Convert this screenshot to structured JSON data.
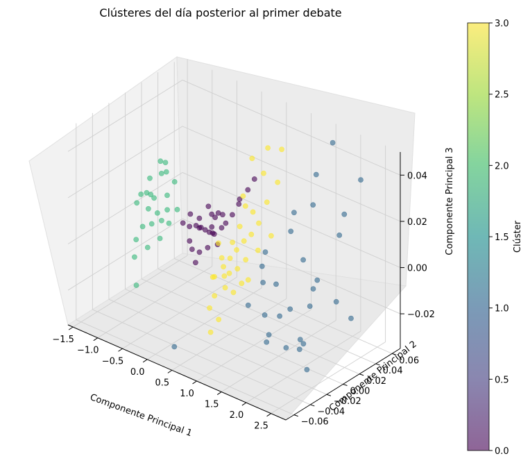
{
  "chart_data": {
    "type": "scatter",
    "projection": "3d",
    "title": "Clústeres del día posterior al primer debate",
    "xlabel": "Componente Principal 1",
    "ylabel": "Componente Principal 2",
    "zlabel": "Componente Principal 3",
    "xlim": [
      -1.6,
      2.8
    ],
    "ylim": [
      -0.07,
      0.07
    ],
    "zlim": [
      -0.035,
      0.05
    ],
    "x_ticks": [
      "−1.5",
      "−1.0",
      "−0.5",
      "0.0",
      "0.5",
      "1.0",
      "1.5",
      "2.0",
      "2.5"
    ],
    "y_ticks": [
      "−0.06",
      "−0.04",
      "−0.02",
      "0.00",
      "0.02",
      "0.04",
      "0.06"
    ],
    "z_ticks": [
      "−0.02",
      "0.00",
      "0.02",
      "0.04"
    ],
    "grid": true,
    "colormap": "viridis",
    "marker_alpha": 0.6,
    "colorbar": {
      "label": "Clúster",
      "range": [
        0.0,
        3.0
      ],
      "ticks": [
        "0.0",
        "0.5",
        "1.0",
        "1.5",
        "2.0",
        "2.5",
        "3.0"
      ],
      "placement": "right"
    },
    "series": [
      {
        "cluster": 0,
        "color": "#440154",
        "points": [
          [
            -0.15,
            0.01,
            0.002
          ],
          [
            -0.1,
            0.012,
            0.001
          ],
          [
            -0.2,
            0.008,
            0.003
          ],
          [
            -0.05,
            0.015,
            0.0
          ],
          [
            0.0,
            0.01,
            0.002
          ],
          [
            -0.25,
            0.005,
            0.004
          ],
          [
            -0.3,
            0.012,
            0.001
          ],
          [
            0.05,
            0.018,
            0.003
          ],
          [
            0.1,
            0.02,
            0.005
          ],
          [
            -0.4,
            0.006,
            0.002
          ],
          [
            -0.35,
            0.015,
            0.004
          ],
          [
            0.15,
            0.025,
            0.008
          ],
          [
            0.2,
            0.03,
            0.012
          ],
          [
            0.25,
            0.028,
            0.015
          ],
          [
            -0.1,
            0.0,
            -0.005
          ],
          [
            -0.2,
            -0.003,
            -0.004
          ],
          [
            0.0,
            0.004,
            -0.003
          ],
          [
            -0.3,
            0.0,
            -0.002
          ],
          [
            0.1,
            0.01,
            -0.002
          ],
          [
            -0.45,
            0.01,
            0.006
          ],
          [
            0.3,
            0.035,
            0.018
          ],
          [
            -0.05,
            0.02,
            0.008
          ],
          [
            0.05,
            0.006,
            0.006
          ],
          [
            -0.15,
            0.018,
            0.007
          ],
          [
            -0.25,
            0.02,
            0.009
          ],
          [
            0.12,
            0.015,
            0.01
          ],
          [
            -0.5,
            0.004,
            0.003
          ],
          [
            0.35,
            0.04,
            0.022
          ],
          [
            -0.08,
            -0.006,
            -0.008
          ],
          [
            -0.18,
            0.024,
            0.004
          ]
        ]
      },
      {
        "cluster": 1,
        "color": "#31688e",
        "points": [
          [
            1.6,
            0.06,
            0.045
          ],
          [
            2.2,
            0.058,
            0.035
          ],
          [
            1.9,
            0.05,
            0.01
          ],
          [
            1.5,
            0.03,
            0.0
          ],
          [
            1.7,
            0.035,
            -0.008
          ],
          [
            2.3,
            0.04,
            -0.02
          ],
          [
            1.8,
            0.02,
            -0.015
          ],
          [
            1.2,
            0.015,
            -0.01
          ],
          [
            1.4,
            0.02,
            -0.02
          ],
          [
            2.0,
            0.0,
            -0.025
          ],
          [
            2.1,
            -0.01,
            -0.02
          ],
          [
            2.4,
            -0.02,
            -0.028
          ],
          [
            1.3,
            -0.005,
            -0.018
          ],
          [
            1.55,
            -0.015,
            -0.022
          ],
          [
            1.75,
            -0.03,
            -0.02
          ],
          [
            2.5,
            -0.035,
            -0.015
          ],
          [
            1.1,
            0.005,
            -0.008
          ],
          [
            1.0,
            0.01,
            -0.003
          ],
          [
            0.9,
            0.02,
            0.0
          ],
          [
            1.25,
            0.03,
            0.01
          ],
          [
            1.45,
            0.045,
            0.02
          ],
          [
            1.35,
            0.055,
            0.03
          ],
          [
            2.25,
            0.025,
            -0.01
          ],
          [
            1.95,
            0.015,
            -0.005
          ],
          [
            1.05,
            -0.01,
            -0.015
          ],
          [
            1.65,
            0.0,
            -0.03
          ],
          [
            0.3,
            -0.055,
            -0.03
          ],
          [
            2.0,
            0.05,
            0.02
          ],
          [
            1.15,
            0.04,
            0.015
          ],
          [
            1.85,
            -0.02,
            -0.01
          ]
        ]
      },
      {
        "cluster": 2,
        "color": "#35b779",
        "points": [
          [
            -1.05,
            -0.005,
            0.006
          ],
          [
            -0.95,
            0.0,
            0.004
          ],
          [
            -1.1,
            0.005,
            0.008
          ],
          [
            -0.9,
            -0.01,
            0.002
          ],
          [
            -1.2,
            0.002,
            0.01
          ],
          [
            -0.85,
            0.006,
            0.005
          ],
          [
            -1.0,
            -0.015,
            0.001
          ],
          [
            -1.15,
            -0.008,
            0.012
          ],
          [
            -0.8,
            -0.004,
            0.003
          ],
          [
            -0.95,
            0.012,
            0.009
          ],
          [
            -1.25,
            0.01,
            0.007
          ],
          [
            -1.05,
            -0.02,
            -0.004
          ],
          [
            -1.3,
            -0.004,
            0.006
          ],
          [
            -0.75,
            0.002,
            0.001
          ],
          [
            -0.9,
            0.018,
            0.014
          ],
          [
            -1.1,
            0.02,
            0.016
          ],
          [
            -1.0,
            -0.025,
            -0.01
          ],
          [
            -0.95,
            0.005,
            0.02
          ],
          [
            -0.85,
            -0.018,
            -0.006
          ],
          [
            -1.2,
            0.025,
            0.018
          ],
          [
            -0.7,
            -0.012,
            -0.002
          ],
          [
            -1.35,
            0.015,
            0.012
          ],
          [
            -0.88,
            -0.03,
            -0.02
          ],
          [
            -1.02,
            0.008,
            0.024
          ],
          [
            -0.78,
            0.014,
            0.004
          ]
        ]
      },
      {
        "cluster": 3,
        "color": "#fde725",
        "points": [
          [
            0.65,
            -0.015,
            -0.005
          ],
          [
            0.55,
            -0.01,
            -0.003
          ],
          [
            0.75,
            -0.02,
            -0.008
          ],
          [
            0.6,
            -0.005,
            0.0
          ],
          [
            0.7,
            -0.012,
            -0.004
          ],
          [
            0.5,
            -0.018,
            -0.006
          ],
          [
            0.8,
            -0.008,
            -0.002
          ],
          [
            0.65,
            0.0,
            0.003
          ],
          [
            0.45,
            -0.006,
            -0.001
          ],
          [
            0.85,
            -0.016,
            -0.01
          ],
          [
            0.6,
            -0.024,
            -0.012
          ],
          [
            0.7,
            0.006,
            0.006
          ],
          [
            0.9,
            -0.004,
            0.002
          ],
          [
            0.5,
            0.004,
            0.004
          ],
          [
            0.75,
            0.012,
            0.008
          ],
          [
            0.95,
            -0.012,
            -0.006
          ],
          [
            0.4,
            -0.014,
            -0.008
          ],
          [
            0.55,
            0.01,
            0.01
          ],
          [
            0.8,
            0.018,
            0.012
          ],
          [
            0.65,
            0.02,
            0.015
          ],
          [
            1.0,
            0.005,
            0.005
          ],
          [
            0.6,
            -0.03,
            -0.016
          ],
          [
            0.85,
            0.025,
            0.02
          ],
          [
            0.7,
            0.03,
            0.03
          ],
          [
            0.5,
            0.028,
            0.035
          ],
          [
            0.9,
            0.04,
            0.04
          ],
          [
            0.75,
            -0.028,
            -0.02
          ],
          [
            1.1,
            0.015,
            0.01
          ],
          [
            0.45,
            0.02,
            0.02
          ],
          [
            0.95,
            0.032,
            0.028
          ],
          [
            0.35,
            -0.004,
            0.004
          ],
          [
            1.05,
            -0.01,
            -0.004
          ],
          [
            0.62,
            0.04,
            0.038
          ],
          [
            0.72,
            -0.036,
            -0.024
          ],
          [
            0.58,
            0.015,
            0.018
          ]
        ]
      }
    ]
  }
}
